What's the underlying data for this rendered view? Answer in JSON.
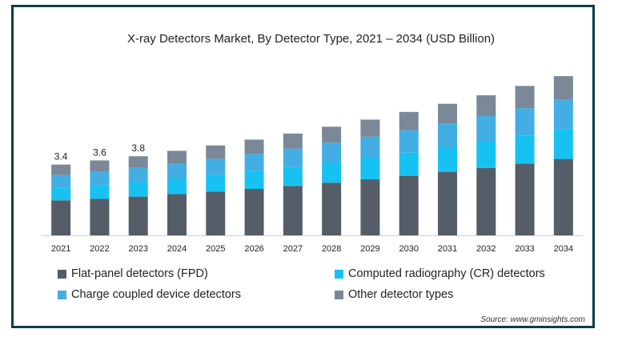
{
  "chart_data": {
    "type": "bar",
    "stacked": true,
    "title": "X-ray Detectors Market, By Detector Type, 2021 – 2034 (USD Billion)",
    "categories": [
      "2021",
      "2022",
      "2023",
      "2024",
      "2025",
      "2026",
      "2027",
      "2028",
      "2029",
      "2030",
      "2031",
      "2032",
      "2033",
      "2034"
    ],
    "data_labels": [
      "3.4",
      "3.6",
      "3.8",
      "",
      "",
      "",
      "",
      "",
      "",
      "",
      "",
      "",
      "",
      ""
    ],
    "grid": false,
    "legend_position": "bottom",
    "series": [
      {
        "name": "Flat-panel detectors (FPD)",
        "color": "#545d68",
        "values": [
          1.68,
          1.75,
          1.86,
          1.98,
          2.1,
          2.23,
          2.37,
          2.53,
          2.69,
          2.86,
          3.05,
          3.24,
          3.45,
          3.67
        ]
      },
      {
        "name": "Computed radiography (CR) detectors",
        "color": "#17c2f2",
        "values": [
          0.62,
          0.67,
          0.7,
          0.75,
          0.8,
          0.86,
          0.91,
          0.97,
          1.04,
          1.11,
          1.18,
          1.26,
          1.35,
          1.44
        ]
      },
      {
        "name": "Charge coupled device detectors",
        "color": "#43aee3",
        "values": [
          0.6,
          0.64,
          0.68,
          0.73,
          0.78,
          0.83,
          0.89,
          0.95,
          1.01,
          1.08,
          1.15,
          1.23,
          1.31,
          1.4
        ]
      },
      {
        "name": "Other detector types",
        "color": "#7a8898",
        "values": [
          0.5,
          0.54,
          0.56,
          0.6,
          0.64,
          0.68,
          0.72,
          0.77,
          0.82,
          0.88,
          0.94,
          1.0,
          1.07,
          1.14
        ]
      }
    ],
    "ylim": [
      0,
      8.0
    ]
  },
  "source": "Source: www.gminsights.com"
}
